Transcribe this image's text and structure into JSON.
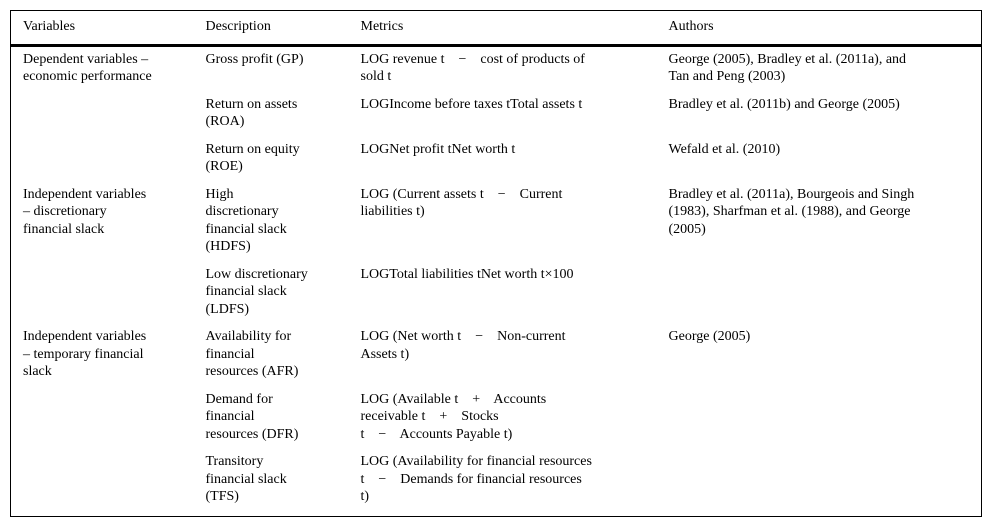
{
  "colors": {
    "text": "#000000",
    "background": "#ffffff",
    "rule": "#000000"
  },
  "table": {
    "columns": [
      "Variables",
      "Description",
      "Metrics",
      "Authors"
    ],
    "rows": [
      {
        "variable": "Dependent variables –\neconomic performance",
        "description": "Gross profit (GP)",
        "metrics": "LOG revenue t    −    cost of products of\nsold t",
        "authors": "George (2005), Bradley et al. (2011a), and\nTan and Peng (2003)"
      },
      {
        "variable": "",
        "description": "Return on assets\n(ROA)",
        "metrics": "LOGIncome before taxes tTotal assets t",
        "authors": "Bradley et al. (2011b) and George (2005)"
      },
      {
        "variable": "",
        "description": "Return on equity\n(ROE)",
        "metrics": "LOGNet profit tNet worth t",
        "authors": "Wefald et al. (2010)"
      },
      {
        "variable": "Independent variables\n– discretionary\nfinancial slack",
        "description": "High\ndiscretionary\nfinancial slack\n(HDFS)",
        "metrics": "LOG (Current assets t    −    Current\nliabilities t)",
        "authors": "Bradley et al. (2011a), Bourgeois and Singh\n(1983), Sharfman et al. (1988), and George\n(2005)"
      },
      {
        "variable": "",
        "description": "Low discretionary\nfinancial slack\n(LDFS)",
        "metrics": "LOGTotal liabilities tNet worth t×100",
        "authors": ""
      },
      {
        "variable": "Independent variables\n– temporary financial\nslack",
        "description": "Availability for\nfinancial\nresources (AFR)",
        "metrics": "LOG (Net worth t    −    Non-current\nAssets t)",
        "authors": "George (2005)"
      },
      {
        "variable": "",
        "description": "Demand for\nfinancial\nresources (DFR)",
        "metrics": "LOG (Available t    +    Accounts\nreceivable t    +    Stocks\nt    −    Accounts Payable t)",
        "authors": ""
      },
      {
        "variable": "",
        "description": "Transitory\nfinancial slack\n(TFS)",
        "metrics": "LOG (Availability for financial resources\nt    −    Demands for financial resources\nt)",
        "authors": ""
      }
    ]
  }
}
